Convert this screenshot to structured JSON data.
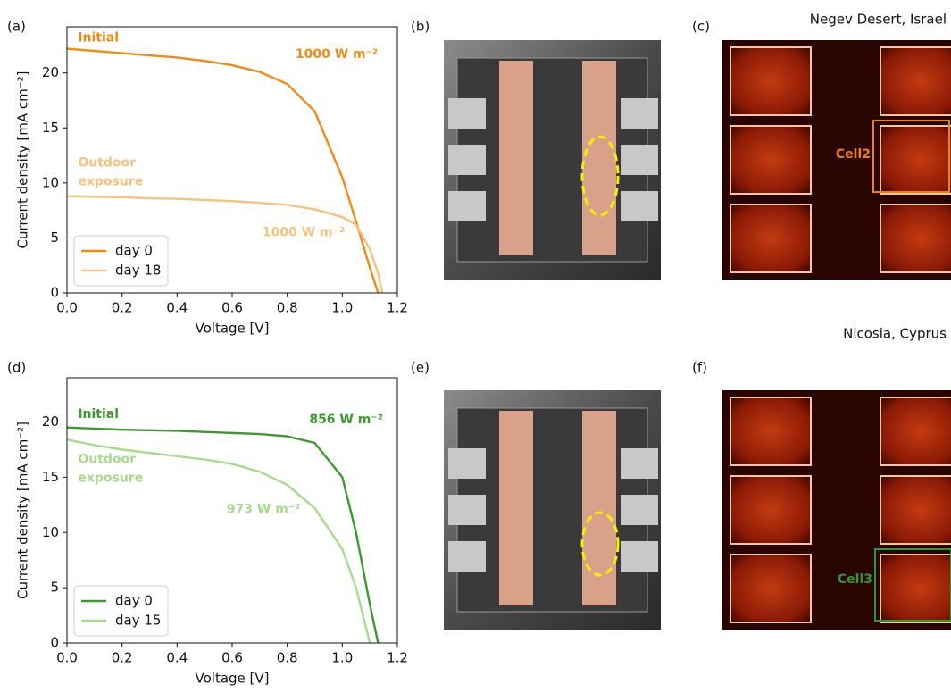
{
  "chart_data": [
    {
      "type": "line",
      "panel_label": "(a)",
      "x": [
        0,
        0.1,
        0.2,
        0.3,
        0.4,
        0.5,
        0.6,
        0.7,
        0.8,
        0.9,
        1.0,
        1.05,
        1.1,
        1.13,
        1.145
      ],
      "series": [
        {
          "name": "day 0",
          "color": "#f28a12",
          "values": [
            22.2,
            22.0,
            21.8,
            21.6,
            21.4,
            21.1,
            20.7,
            20.1,
            19.0,
            16.5,
            10.5,
            6.5,
            2.3,
            0,
            null
          ]
        },
        {
          "name": "day 18",
          "color": "#f8c17d",
          "values": [
            8.8,
            8.75,
            8.7,
            8.6,
            8.55,
            8.45,
            8.35,
            8.2,
            8.0,
            7.6,
            6.9,
            6.2,
            4.0,
            1.8,
            0
          ]
        }
      ],
      "xlabel": "Voltage [V]",
      "ylabel": "Current density [mA cm⁻²]",
      "xlim": [
        0,
        1.2
      ],
      "ylim": [
        0,
        24.2
      ],
      "xticks": [
        {
          "value": 0,
          "label": "0.0"
        },
        0.2,
        0.4,
        0.6,
        0.8,
        {
          "value": 1,
          "label": "1.0"
        },
        1.2
      ],
      "yticks": [
        0,
        5,
        10,
        15,
        20
      ],
      "legend": "lower left",
      "annotations": [
        {
          "text": "Initial",
          "color": "#f28a12"
        },
        {
          "text": "1000 W m⁻²",
          "color": "#f28a12"
        },
        {
          "text": "Outdoor",
          "color": "#f8c17d"
        },
        {
          "text": "exposure",
          "color": "#f8c17d"
        },
        {
          "text": "1000 W m⁻²",
          "color": "#f8c17d"
        }
      ]
    },
    {
      "type": "line",
      "panel_label": "(d)",
      "x": [
        0,
        0.1,
        0.2,
        0.3,
        0.4,
        0.5,
        0.6,
        0.7,
        0.8,
        0.9,
        1.0,
        1.05,
        1.1,
        1.13
      ],
      "series": [
        {
          "name": "day 0",
          "color": "#3a9a2c",
          "values": [
            19.5,
            19.4,
            19.3,
            19.25,
            19.2,
            19.1,
            19.0,
            18.9,
            18.7,
            18.1,
            15.0,
            10.0,
            3.5,
            0
          ]
        },
        {
          "name": "day 15",
          "color": "#a8da8c",
          "values": [
            18.4,
            17.9,
            17.5,
            17.2,
            16.9,
            16.6,
            16.2,
            15.5,
            14.3,
            12.2,
            8.5,
            5.0,
            0,
            null
          ]
        }
      ],
      "xlabel": "Voltage [V]",
      "ylabel": "Current density [mA cm⁻²]",
      "xlim": [
        0,
        1.2
      ],
      "ylim": [
        0,
        24
      ],
      "xticks": [
        {
          "value": 0,
          "label": "0.0"
        },
        0.2,
        0.4,
        0.6,
        0.8,
        {
          "value": 1,
          "label": "1.0"
        },
        1.2
      ],
      "yticks": [
        0,
        5,
        10,
        15,
        20
      ],
      "legend": "lower left",
      "annotations": [
        {
          "text": "Initial",
          "color": "#3a9a2c"
        },
        {
          "text": "856 W m⁻²",
          "color": "#3a9a2c"
        },
        {
          "text": "Outdoor",
          "color": "#a8da8c"
        },
        {
          "text": "exposure",
          "color": "#a8da8c"
        },
        {
          "text": "973 W m⁻²",
          "color": "#a8da8c"
        }
      ]
    }
  ],
  "panels": [
    {
      "label": "(b)"
    },
    {
      "label": "(c)",
      "caption": "Negev Desert, Israel",
      "box_label": "Cell2",
      "box_color": "#f0830a"
    },
    {
      "label": "(e)"
    },
    {
      "label": "(f)",
      "caption": "Nicosia, Cyprus",
      "box_label": "Cell3",
      "box_color": "#2e9a2e"
    }
  ]
}
